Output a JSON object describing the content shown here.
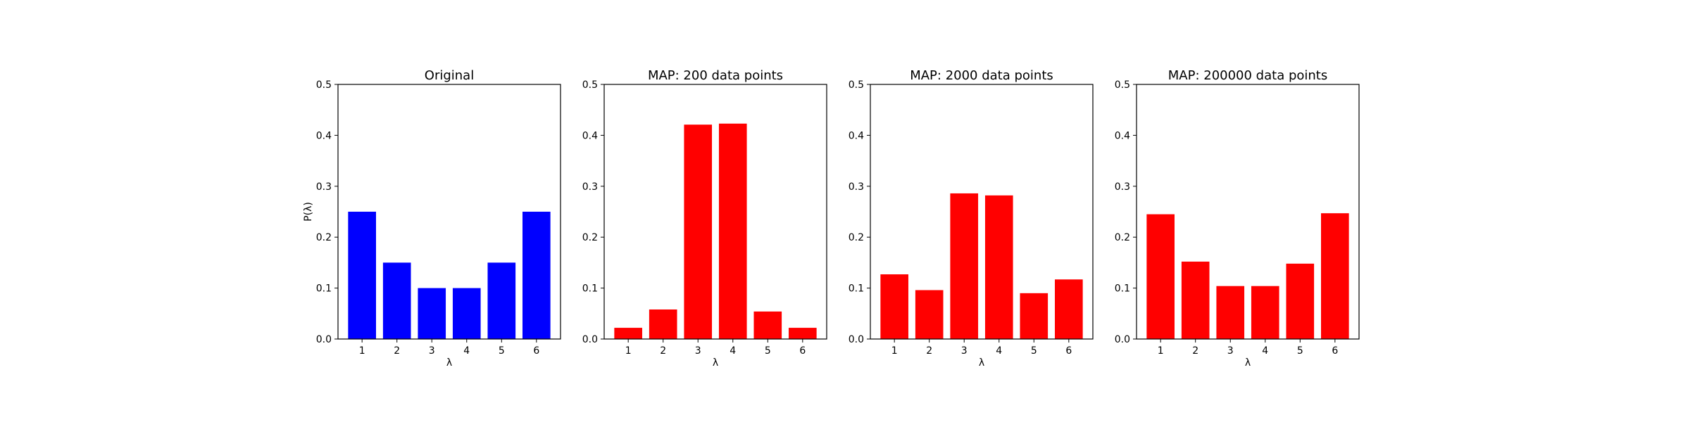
{
  "chart_data": [
    {
      "type": "bar",
      "title": "Original",
      "xlabel": "λ",
      "ylabel": "P(λ)",
      "categories": [
        "1",
        "2",
        "3",
        "4",
        "5",
        "6"
      ],
      "values": [
        0.25,
        0.15,
        0.1,
        0.1,
        0.15,
        0.25
      ],
      "color": "#0000ff",
      "ylim": [
        0,
        0.5
      ],
      "yticks": [
        "0.0",
        "0.1",
        "0.2",
        "0.3",
        "0.4",
        "0.5"
      ],
      "grid": false
    },
    {
      "type": "bar",
      "title": "MAP: 200 data points",
      "xlabel": "λ",
      "ylabel": "",
      "categories": [
        "1",
        "2",
        "3",
        "4",
        "5",
        "6"
      ],
      "values": [
        0.022,
        0.058,
        0.421,
        0.423,
        0.054,
        0.022
      ],
      "color": "#ff0000",
      "ylim": [
        0,
        0.5
      ],
      "yticks": [
        "0.0",
        "0.1",
        "0.2",
        "0.3",
        "0.4",
        "0.5"
      ],
      "grid": false
    },
    {
      "type": "bar",
      "title": "MAP: 2000 data points",
      "xlabel": "λ",
      "ylabel": "",
      "categories": [
        "1",
        "2",
        "3",
        "4",
        "5",
        "6"
      ],
      "values": [
        0.127,
        0.096,
        0.286,
        0.282,
        0.09,
        0.117
      ],
      "color": "#ff0000",
      "ylim": [
        0,
        0.5
      ],
      "yticks": [
        "0.0",
        "0.1",
        "0.2",
        "0.3",
        "0.4",
        "0.5"
      ],
      "grid": false
    },
    {
      "type": "bar",
      "title": "MAP: 200000 data points",
      "xlabel": "λ",
      "ylabel": "",
      "categories": [
        "1",
        "2",
        "3",
        "4",
        "5",
        "6"
      ],
      "values": [
        0.245,
        0.152,
        0.104,
        0.104,
        0.148,
        0.247
      ],
      "color": "#ff0000",
      "ylim": [
        0,
        0.5
      ],
      "yticks": [
        "0.0",
        "0.1",
        "0.2",
        "0.3",
        "0.4",
        "0.5"
      ],
      "grid": false
    }
  ]
}
